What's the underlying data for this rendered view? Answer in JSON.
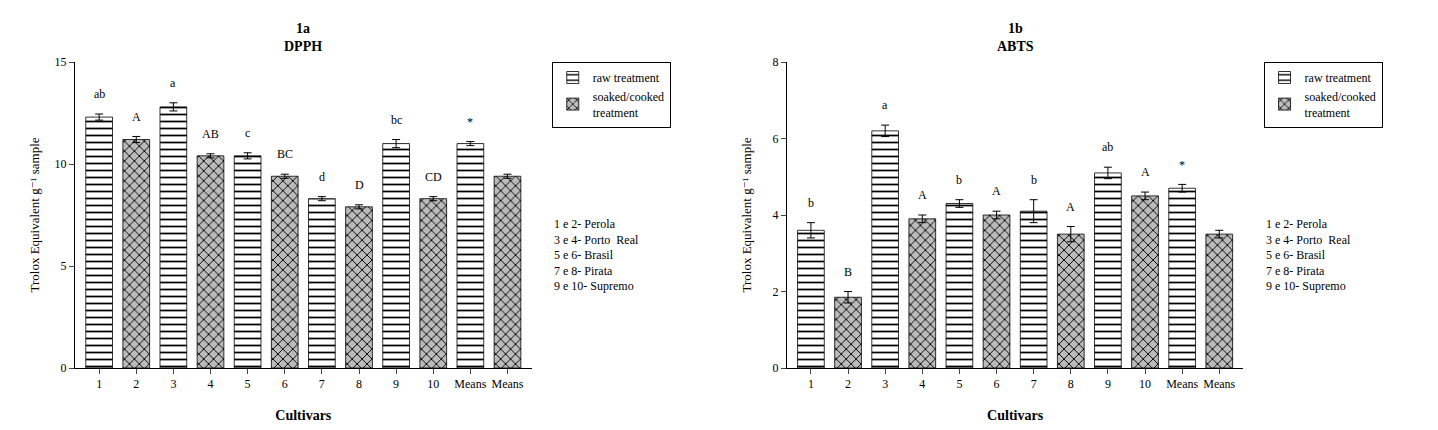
{
  "chart_data": [
    {
      "type": "bar",
      "title": "1a",
      "subtitle": "DPPH",
      "xlabel": "Cultivars",
      "ylabel": "Trolox Equivalent g⁻¹ sample",
      "categories": [
        "1",
        "2",
        "3",
        "4",
        "5",
        "6",
        "7",
        "8",
        "9",
        "10",
        "Means",
        "Means"
      ],
      "ylim": [
        0,
        15
      ],
      "yticks": [
        0,
        5,
        10,
        15
      ],
      "grid": false,
      "legend": "right",
      "notes": [
        "1 e 2- Perola",
        "3 e 4- Porto  Real",
        "5 e 6- Brasil",
        "7 e 8- Pirata",
        "9 e 10- Supremo"
      ],
      "series": [
        {
          "name": "raw treatment",
          "color": "white",
          "values": [
            12.3,
            null,
            12.8,
            null,
            10.4,
            null,
            8.3,
            null,
            11.0,
            null,
            11.0,
            null
          ],
          "errors": [
            0.15,
            null,
            0.2,
            null,
            0.15,
            null,
            0.1,
            null,
            0.2,
            null,
            0.1,
            null
          ],
          "annotations": [
            "ab",
            null,
            "a",
            null,
            "c",
            null,
            "d",
            null,
            "bc",
            null,
            "*",
            null
          ]
        },
        {
          "name": "soaked/cooked\ntreatment",
          "color": "#bbbbbb",
          "values": [
            null,
            11.2,
            null,
            10.4,
            null,
            9.4,
            null,
            7.9,
            null,
            8.3,
            null,
            9.4
          ],
          "errors": [
            null,
            0.15,
            null,
            0.1,
            null,
            0.1,
            null,
            0.1,
            null,
            0.1,
            null,
            0.1
          ],
          "annotations": [
            null,
            "A",
            null,
            "AB",
            null,
            "BC",
            null,
            "D",
            null,
            "CD",
            null,
            null
          ]
        }
      ]
    },
    {
      "type": "bar",
      "title": "1b",
      "subtitle": "ABTS",
      "xlabel": "Cultivars",
      "ylabel": "Trolox Equivalent g⁻¹ sample",
      "categories": [
        "1",
        "2",
        "3",
        "4",
        "5",
        "6",
        "7",
        "8",
        "9",
        "10",
        "Means",
        "Means"
      ],
      "ylim": [
        0,
        8
      ],
      "yticks": [
        0,
        2,
        4,
        6,
        8
      ],
      "grid": false,
      "legend": "right",
      "notes": [
        "1 e 2- Perola",
        "3 e 4- Porto  Real",
        "5 e 6- Brasil",
        "7 e 8- Pirata",
        "9 e 10- Supremo"
      ],
      "series": [
        {
          "name": "raw treatment",
          "color": "white",
          "values": [
            3.6,
            null,
            6.2,
            null,
            4.3,
            null,
            4.1,
            null,
            5.1,
            null,
            4.7,
            null
          ],
          "errors": [
            0.2,
            null,
            0.15,
            null,
            0.1,
            null,
            0.3,
            null,
            0.15,
            null,
            0.1,
            null
          ],
          "annotations": [
            "b",
            null,
            "a",
            null,
            "b",
            null,
            "b",
            null,
            "ab",
            null,
            "*",
            null
          ]
        },
        {
          "name": "soaked/cooked\ntreatment",
          "color": "#bbbbbb",
          "values": [
            null,
            1.85,
            null,
            3.9,
            null,
            4.0,
            null,
            3.5,
            null,
            4.5,
            null,
            3.5
          ],
          "errors": [
            null,
            0.15,
            null,
            0.1,
            null,
            0.1,
            null,
            0.2,
            null,
            0.1,
            null,
            0.1
          ],
          "annotations": [
            null,
            "B",
            null,
            "A",
            null,
            "A",
            null,
            "A",
            null,
            "A",
            null,
            null
          ]
        }
      ]
    }
  ]
}
